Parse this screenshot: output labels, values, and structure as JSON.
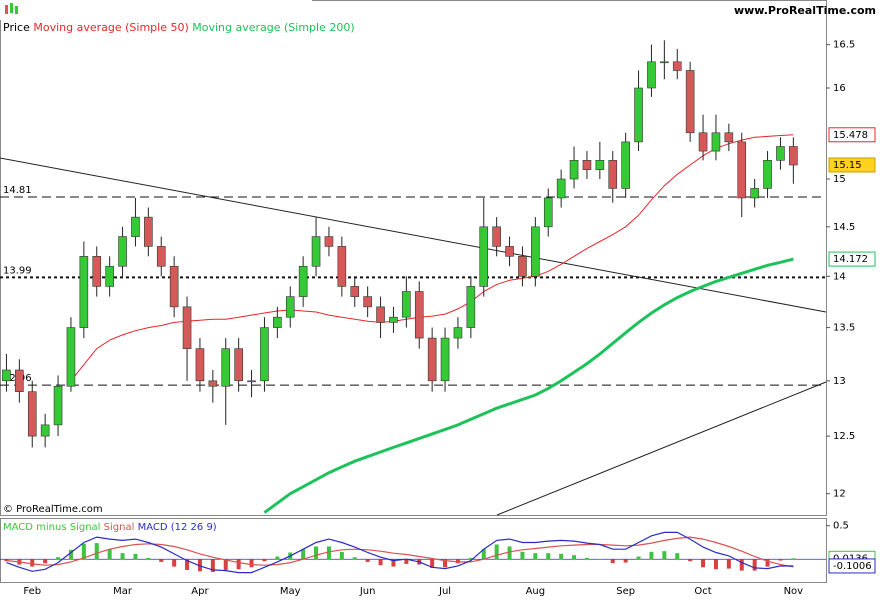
{
  "chart_data": [
    {
      "type": "candlestick",
      "watermark": "www.ProRealTime.com",
      "copyright": "© ProRealTime.com",
      "price_label": "Price",
      "categories": [
        null,
        null,
        "Feb",
        null,
        null,
        null,
        null,
        null,
        null,
        "Mar",
        null,
        null,
        null,
        null,
        null,
        "Apr",
        null,
        null,
        null,
        null,
        null,
        null,
        "May",
        null,
        null,
        null,
        null,
        null,
        "Jun",
        null,
        null,
        null,
        null,
        null,
        "Jul",
        null,
        null,
        null,
        null,
        null,
        null,
        "Aug",
        null,
        null,
        null,
        null,
        null,
        null,
        "Sep",
        null,
        null,
        null,
        null,
        null,
        "Oct",
        null,
        null,
        null,
        null,
        null,
        null,
        "Nov"
      ],
      "open": [
        13.0,
        13.1,
        12.9,
        12.5,
        12.6,
        12.95,
        13.5,
        14.2,
        13.9,
        14.1,
        14.4,
        14.6,
        14.3,
        14.1,
        13.7,
        13.3,
        13.0,
        12.95,
        13.3,
        13.0,
        13.0,
        13.5,
        13.6,
        13.8,
        14.1,
        14.4,
        14.3,
        13.9,
        13.8,
        13.7,
        13.55,
        13.6,
        13.85,
        13.4,
        13.0,
        13.4,
        13.5,
        13.9,
        14.5,
        14.3,
        14.2,
        14.0,
        14.5,
        14.8,
        15.0,
        15.2,
        15.1,
        15.2,
        14.9,
        15.4,
        16.0,
        16.3,
        16.3,
        16.2,
        15.5,
        15.3,
        15.5,
        15.4,
        14.8,
        14.9,
        15.2,
        15.35
      ],
      "high": [
        13.25,
        13.2,
        13.0,
        12.7,
        13.05,
        13.6,
        14.35,
        14.3,
        14.2,
        14.5,
        14.8,
        14.7,
        14.4,
        14.2,
        13.8,
        13.4,
        13.1,
        13.4,
        13.4,
        13.1,
        13.6,
        13.7,
        13.9,
        14.2,
        14.6,
        14.5,
        14.4,
        14.0,
        13.9,
        13.8,
        13.7,
        14.0,
        13.95,
        13.5,
        13.5,
        13.6,
        14.0,
        14.8,
        14.6,
        14.4,
        14.3,
        14.6,
        14.9,
        15.1,
        15.35,
        15.3,
        15.4,
        15.3,
        15.5,
        16.2,
        16.5,
        16.55,
        16.45,
        16.3,
        15.7,
        15.7,
        15.6,
        15.5,
        15.0,
        15.3,
        15.45,
        15.45
      ],
      "low": [
        12.9,
        12.8,
        12.4,
        12.4,
        12.5,
        12.9,
        13.4,
        13.8,
        13.8,
        14.0,
        14.3,
        14.2,
        14.0,
        13.6,
        13.0,
        12.9,
        12.8,
        12.6,
        12.9,
        12.85,
        12.9,
        13.4,
        13.5,
        13.7,
        14.0,
        14.2,
        13.8,
        13.7,
        13.6,
        13.4,
        13.45,
        13.5,
        13.3,
        12.9,
        12.9,
        13.3,
        13.4,
        13.8,
        14.2,
        14.1,
        13.9,
        13.9,
        14.4,
        14.7,
        14.9,
        15.0,
        15.0,
        14.75,
        14.8,
        15.3,
        15.9,
        16.1,
        16.1,
        15.4,
        15.2,
        15.2,
        15.3,
        14.6,
        14.7,
        14.8,
        15.1,
        14.95
      ],
      "close": [
        13.1,
        12.9,
        12.5,
        12.6,
        12.95,
        13.5,
        14.2,
        13.9,
        14.1,
        14.4,
        14.6,
        14.3,
        14.1,
        13.7,
        13.3,
        13.0,
        12.95,
        13.3,
        13.0,
        13.0,
        13.5,
        13.6,
        13.8,
        14.1,
        14.4,
        14.3,
        13.9,
        13.8,
        13.7,
        13.55,
        13.6,
        13.85,
        13.4,
        13.0,
        13.4,
        13.5,
        13.9,
        14.5,
        14.3,
        14.2,
        14.0,
        14.5,
        14.8,
        15.0,
        15.2,
        15.1,
        15.2,
        14.9,
        15.4,
        16.0,
        16.3,
        16.3,
        16.2,
        15.5,
        15.3,
        15.5,
        15.4,
        14.8,
        14.9,
        15.2,
        15.35,
        15.15
      ],
      "up_color": "#35c935",
      "down_color": "#d45a5a",
      "last_color": "#ffd21f",
      "series": [
        {
          "name": "Moving average (Simple 50)",
          "color": "#e8262a",
          "values": [
            null,
            null,
            null,
            null,
            null,
            13.0,
            13.15,
            13.3,
            13.38,
            13.43,
            13.47,
            13.5,
            13.52,
            13.55,
            13.56,
            13.57,
            13.58,
            13.58,
            13.6,
            13.62,
            13.64,
            13.66,
            13.67,
            13.66,
            13.65,
            13.62,
            13.6,
            13.58,
            13.56,
            13.55,
            13.56,
            13.58,
            13.6,
            13.61,
            13.63,
            13.68,
            13.75,
            13.85,
            13.92,
            13.96,
            13.98,
            14.0,
            14.05,
            14.12,
            14.2,
            14.28,
            14.35,
            14.42,
            14.5,
            14.62,
            14.78,
            14.93,
            15.05,
            15.15,
            15.25,
            15.33,
            15.38,
            15.42,
            15.45,
            15.46,
            15.47,
            15.478
          ]
        },
        {
          "name": "Moving average (Simple 200)",
          "color": "#1ec25a",
          "values": [
            null,
            null,
            null,
            null,
            null,
            null,
            null,
            null,
            null,
            null,
            null,
            null,
            null,
            null,
            null,
            null,
            null,
            null,
            null,
            null,
            11.84,
            11.92,
            12.0,
            12.06,
            12.12,
            12.18,
            12.23,
            12.28,
            12.32,
            12.36,
            12.4,
            12.44,
            12.48,
            12.52,
            12.56,
            12.6,
            12.65,
            12.7,
            12.75,
            12.79,
            12.83,
            12.87,
            12.93,
            13.0,
            13.08,
            13.16,
            13.25,
            13.35,
            13.45,
            13.55,
            13.64,
            13.72,
            13.79,
            13.85,
            13.9,
            13.95,
            13.99,
            14.03,
            14.07,
            14.11,
            14.14,
            14.172
          ]
        }
      ],
      "hlines": [
        {
          "value": 14.81,
          "style": "dashed"
        },
        {
          "value": 13.99,
          "style": "dotted"
        },
        {
          "value": 12.96,
          "style": "dashed"
        }
      ],
      "log_scale": true,
      "ylim": [
        11.82,
        16.97
      ],
      "yticks": [
        12,
        12.5,
        13,
        13.5,
        14,
        14.5,
        15,
        16,
        16.5
      ]
    },
    {
      "type": "macd",
      "params": "(12 26 9)",
      "series": [
        {
          "name": "MACD minus Signal",
          "color": "#3cc43c",
          "negative_color": "#d84040",
          "kind": "histogram",
          "values": [
            -0.03,
            -0.08,
            -0.11,
            -0.06,
            0.03,
            0.14,
            0.23,
            0.24,
            0.15,
            0.09,
            0.08,
            0.02,
            -0.04,
            -0.11,
            -0.16,
            -0.18,
            -0.19,
            -0.16,
            -0.15,
            -0.12,
            -0.03,
            0.04,
            0.1,
            0.15,
            0.19,
            0.19,
            0.11,
            0.03,
            -0.04,
            -0.09,
            -0.11,
            -0.07,
            -0.08,
            -0.13,
            -0.12,
            -0.06,
            0.02,
            0.15,
            0.22,
            0.19,
            0.11,
            0.09,
            0.09,
            0.08,
            0.06,
            0.02,
            0,
            -0.06,
            -0.05,
            0.04,
            0.11,
            0.12,
            0.09,
            -0.03,
            -0.12,
            -0.15,
            -0.14,
            -0.17,
            -0.17,
            -0.11,
            -0.02,
            0.0136
          ]
        },
        {
          "name": "Signal",
          "color": "#d9534f",
          "kind": "line",
          "values": [
            -0.02,
            -0.04,
            -0.07,
            -0.09,
            -0.08,
            -0.04,
            0.02,
            0.09,
            0.15,
            0.19,
            0.22,
            0.23,
            0.22,
            0.19,
            0.14,
            0.08,
            0.03,
            -0.01,
            -0.05,
            -0.08,
            -0.09,
            -0.08,
            -0.05,
            0,
            0.06,
            0.11,
            0.14,
            0.15,
            0.14,
            0.12,
            0.09,
            0.07,
            0.04,
            0.01,
            -0.02,
            -0.04,
            -0.04,
            0,
            0.06,
            0.11,
            0.14,
            0.16,
            0.18,
            0.2,
            0.21,
            0.22,
            0.22,
            0.21,
            0.2,
            0.21,
            0.24,
            0.28,
            0.31,
            0.33,
            0.3,
            0.25,
            0.19,
            0.12,
            0.04,
            -0.03,
            -0.08,
            -0.1142
          ]
        },
        {
          "name": "MACD",
          "color": "#2b2bc8",
          "kind": "line",
          "values": [
            -0.05,
            -0.12,
            -0.18,
            -0.15,
            -0.05,
            0.1,
            0.25,
            0.33,
            0.3,
            0.28,
            0.3,
            0.25,
            0.18,
            0.08,
            -0.02,
            -0.1,
            -0.16,
            -0.17,
            -0.2,
            -0.2,
            -0.12,
            -0.04,
            0.05,
            0.15,
            0.25,
            0.3,
            0.25,
            0.18,
            0.1,
            0.03,
            -0.02,
            0,
            -0.04,
            -0.12,
            -0.14,
            -0.1,
            -0.02,
            0.15,
            0.28,
            0.3,
            0.25,
            0.25,
            0.27,
            0.28,
            0.27,
            0.24,
            0.22,
            0.15,
            0.15,
            0.25,
            0.35,
            0.4,
            0.4,
            0.3,
            0.18,
            0.1,
            0.05,
            -0.05,
            -0.13,
            -0.14,
            -0.1,
            -0.1006
          ]
        }
      ],
      "badges": [
        0,
        2
      ],
      "ylim": [
        -0.34,
        0.6
      ],
      "yticks": [
        0.5
      ]
    }
  ]
}
